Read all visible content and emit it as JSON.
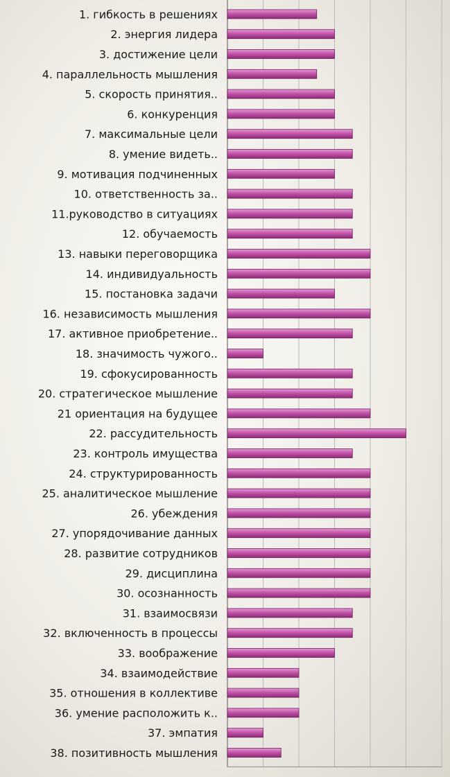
{
  "chart_data": {
    "type": "bar",
    "orientation": "horizontal",
    "xlim": [
      0,
      6
    ],
    "grid": true,
    "bar_color": "#b8469a",
    "bar_highlight": "#e08ad0",
    "categories": [
      "1. гибкость в решениях",
      "2. энергия лидера",
      "3. достижение цели",
      "4. параллельность мышления",
      "5. скорость принятия..",
      "6. конкуренция",
      "7. максимальные цели",
      "8. умение видеть..",
      "9. мотивация подчиненных",
      "10. ответственность за..",
      "11.руководство в ситуациях",
      "12. обучаемость",
      "13. навыки переговорщика",
      "14. индивидуальность",
      "15. постановка задачи",
      "16. независимость мышления",
      "17. активное приобретение..",
      "18. значимость чужого..",
      "19. сфокусированность",
      "20. стратегическое мышление",
      "21 ориентация на будущее",
      "22. рассудительность",
      "23. контроль имущества",
      "24. структурированность",
      "25. аналитическое мышление",
      "26. убеждения",
      "27. упорядочивание данных",
      "28. развитие сотрудников",
      "29. дисциплина",
      "30. осознанность",
      "31. взаимосвязи",
      "32. включенность в процессы",
      "33. воображение",
      "34. взаимодействие",
      "35. отношения в коллективе",
      "36. умение расположить к..",
      "37. эмпатия",
      "38. позитивность мышления"
    ],
    "values": [
      2.5,
      3,
      3,
      2.5,
      3,
      3,
      3.5,
      3.5,
      3,
      3.5,
      3.5,
      3.5,
      4,
      4,
      3,
      4,
      3.5,
      1,
      3.5,
      3.5,
      4,
      5,
      3.5,
      4,
      4,
      4,
      4,
      4,
      4,
      4,
      3.5,
      3.5,
      3,
      2,
      2,
      2,
      1,
      1.5
    ]
  }
}
